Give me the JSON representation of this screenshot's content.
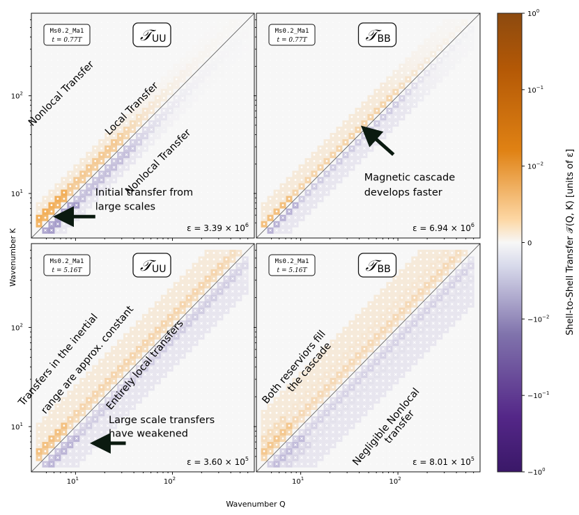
{
  "figure": {
    "xlabel": "Wavenumber Q",
    "ylabel": "Wavenumber K"
  },
  "colorbar": {
    "label": "Shell-to-Shell Transfer 𝒯(Q, K)  [units of ε]",
    "ticks": [
      {
        "value": 1,
        "base": "10",
        "exp": "0"
      },
      {
        "value": 0.1,
        "base": "10",
        "exp": "−1"
      },
      {
        "value": 0.01,
        "base": "10",
        "exp": "−2"
      },
      {
        "value": 0,
        "base": "0",
        "exp": ""
      },
      {
        "value": -0.01,
        "base": "−10",
        "exp": "−2"
      },
      {
        "value": -0.1,
        "base": "−10",
        "exp": "−1"
      },
      {
        "value": -1,
        "base": "−10",
        "exp": "0"
      }
    ],
    "linthresh": 0.01,
    "colors": {
      "positive": "#b35806",
      "positive_mid": "#f1a340",
      "zero": "#f7f7f7",
      "negative_mid": "#998ec3",
      "negative": "#542788"
    }
  },
  "chart_data": [
    {
      "type": "heatmap",
      "id": "panel-uu-early",
      "symbol": "𝒯",
      "subscript": "UU",
      "sim_label": "Ms0.2_Ma1",
      "time_label": "t = 0.77T",
      "epsilon": {
        "prefix": "ε = 3.39 × 10",
        "exp": "6"
      },
      "xlim": [
        3.5,
        700
      ],
      "ylim": [
        3.5,
        700
      ],
      "xticks": [
        {
          "value": 10,
          "exp": "1"
        },
        {
          "value": 100,
          "exp": "2"
        }
      ],
      "yticks": [
        {
          "value": 10,
          "exp": "1"
        },
        {
          "value": 100,
          "exp": "2"
        }
      ],
      "band_extent": 30,
      "band_width": 0.14,
      "band_amp": 0.6,
      "bias": 0.0,
      "annotations": [
        {
          "text": "Nonlocal Transfer",
          "q": 7.5,
          "k": 100,
          "rotation": -45
        },
        {
          "text": "Local Transfer",
          "q": 40,
          "k": 70,
          "rotation": -45
        },
        {
          "text": "Nonlocal Transfer",
          "q": 75,
          "k": 20,
          "rotation": -45
        },
        {
          "text": "Initial transfer from",
          "q": 16,
          "k": 9.5,
          "rotation": 0
        },
        {
          "text": "large scales",
          "q": 16,
          "k": 6.8,
          "rotation": 0
        }
      ],
      "arrow": {
        "from_q": 16,
        "from_k": 5.8,
        "to_q": 7.5,
        "to_k": 5.8
      }
    },
    {
      "type": "heatmap",
      "id": "panel-bb-early",
      "symbol": "𝒯",
      "subscript": "BB",
      "sim_label": "Ms0.2_Ma1",
      "time_label": "t = 0.77T",
      "epsilon": {
        "prefix": "ε = 6.94 × 10",
        "exp": "6"
      },
      "xlim": [
        3.5,
        700
      ],
      "ylim": [
        3.5,
        700
      ],
      "xticks": [
        {
          "value": 10,
          "exp": "1"
        },
        {
          "value": 100,
          "exp": "2"
        }
      ],
      "yticks": [
        {
          "value": 10,
          "exp": "1"
        },
        {
          "value": 100,
          "exp": "2"
        }
      ],
      "band_extent": 90,
      "band_width": 0.12,
      "band_amp": 0.55,
      "bias": 0.0,
      "annotations": [
        {
          "text": "Magnetic cascade",
          "q": 45,
          "k": 13.5,
          "rotation": 0
        },
        {
          "text": "develops faster",
          "q": 45,
          "k": 9.5,
          "rotation": 0
        }
      ],
      "arrow": {
        "from_q": 90,
        "from_k": 25,
        "to_q": 50,
        "to_k": 42
      }
    },
    {
      "type": "heatmap",
      "id": "panel-uu-late",
      "symbol": "𝒯",
      "subscript": "UU",
      "sim_label": "Ms0.2_Ma1",
      "time_label": "t = 5.16T",
      "epsilon": {
        "prefix": "ε = 3.60 × 10",
        "exp": "5"
      },
      "xlim": [
        3.5,
        700
      ],
      "ylim": [
        3.5,
        700
      ],
      "xticks": [
        {
          "value": 10,
          "exp": "1"
        },
        {
          "value": 100,
          "exp": "2"
        }
      ],
      "yticks": [
        {
          "value": 10,
          "exp": "1"
        },
        {
          "value": 100,
          "exp": "2"
        }
      ],
      "band_extent": 380,
      "band_width": 0.18,
      "band_amp": 0.35,
      "bias": 0.0,
      "annotations": [
        {
          "text": "Transfers in the inertial",
          "q": 7,
          "k": 45,
          "rotation": -50
        },
        {
          "text": "range are approx. constant",
          "q": 14,
          "k": 45,
          "rotation": -50
        },
        {
          "text": "Entirely local transfers",
          "q": 55,
          "k": 40,
          "rotation": -50
        },
        {
          "text": "Large scale transfers",
          "q": 22,
          "k": 10.8,
          "rotation": 0
        },
        {
          "text": "have weakened",
          "q": 22,
          "k": 7.9,
          "rotation": 0
        }
      ],
      "arrow": {
        "from_q": 33,
        "from_k": 6.8,
        "to_q": 18,
        "to_k": 6.8
      }
    },
    {
      "type": "heatmap",
      "id": "panel-bb-late",
      "symbol": "𝒯",
      "subscript": "BB",
      "sim_label": "Ms0.2_Ma1",
      "time_label": "t = 5.16T",
      "epsilon": {
        "prefix": "ε = 8.01 × 10",
        "exp": "5"
      },
      "xlim": [
        3.5,
        700
      ],
      "ylim": [
        3.5,
        700
      ],
      "xticks": [
        {
          "value": 10,
          "exp": "1"
        },
        {
          "value": 100,
          "exp": "2"
        }
      ],
      "yticks": [
        {
          "value": 10,
          "exp": "1"
        },
        {
          "value": 100,
          "exp": "2"
        }
      ],
      "band_extent": 420,
      "band_width": 0.26,
      "band_amp": 0.25,
      "bias": 0.0,
      "annotations": [
        {
          "text": "Both reserviors fill",
          "q": 9,
          "k": 38,
          "rotation": -50
        },
        {
          "text": "the cascade",
          "q": 13,
          "k": 38,
          "rotation": -50
        },
        {
          "text": "Negligible Nonlocal",
          "q": 80,
          "k": 9.5,
          "rotation": -50
        },
        {
          "text": "transfer",
          "q": 110,
          "k": 9.5,
          "rotation": -50
        }
      ],
      "arrow": null
    }
  ]
}
